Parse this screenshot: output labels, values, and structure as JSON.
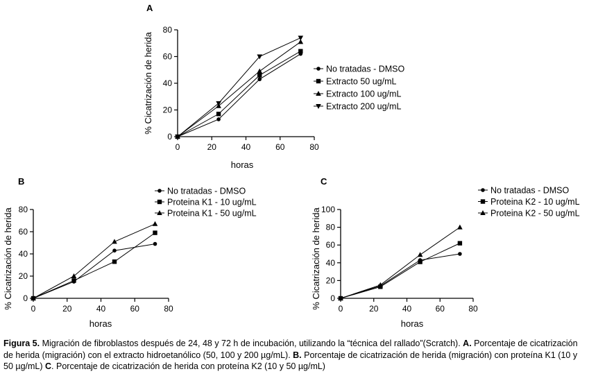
{
  "chart_data": [
    {
      "panel": "A",
      "type": "line",
      "xlabel": "horas",
      "ylabel": "% Cicatrización de herida",
      "xlim": [
        0,
        80
      ],
      "ylim": [
        0,
        80
      ],
      "xticks": [
        0,
        20,
        40,
        60,
        80
      ],
      "yticks": [
        0,
        20,
        40,
        60,
        80
      ],
      "x": [
        0,
        24,
        48,
        72
      ],
      "legend_position": "right",
      "series": [
        {
          "name": "No tratadas - DMSO",
          "marker": "circle",
          "values": [
            0,
            13,
            43,
            62
          ]
        },
        {
          "name": "Extracto 50 ug/mL",
          "marker": "square",
          "values": [
            0,
            17,
            46,
            64
          ]
        },
        {
          "name": "Extracto 100 ug/mL",
          "marker": "triangle-up",
          "values": [
            0,
            23,
            49,
            71
          ]
        },
        {
          "name": "Extracto 200 ug/mL",
          "marker": "triangle-down",
          "values": [
            0,
            25,
            60,
            74
          ]
        }
      ]
    },
    {
      "panel": "B",
      "type": "line",
      "xlabel": "horas",
      "ylabel": "% Cicatrización de herida",
      "xlim": [
        0,
        80
      ],
      "ylim": [
        0,
        80
      ],
      "xticks": [
        0,
        20,
        40,
        60,
        80
      ],
      "yticks": [
        0,
        20,
        40,
        60,
        80
      ],
      "x": [
        0,
        24,
        48,
        72
      ],
      "legend_position": "top-right",
      "series": [
        {
          "name": "No tratadas - DMSO",
          "marker": "circle",
          "values": [
            0,
            15,
            43,
            49
          ]
        },
        {
          "name": "Proteina K1 - 10 ug/mL",
          "marker": "square",
          "values": [
            0,
            16,
            33,
            59
          ]
        },
        {
          "name": "Proteina K1 - 50 ug/mL",
          "marker": "triangle-up",
          "values": [
            0,
            20,
            51,
            67
          ]
        }
      ]
    },
    {
      "panel": "C",
      "type": "line",
      "xlabel": "horas",
      "ylabel": "% Cicatrización de herida",
      "xlim": [
        0,
        80
      ],
      "ylim": [
        0,
        100
      ],
      "xticks": [
        0,
        20,
        40,
        60,
        80
      ],
      "yticks": [
        0,
        20,
        40,
        60,
        80,
        100
      ],
      "x": [
        0,
        24,
        48,
        72
      ],
      "legend_position": "top-right",
      "series": [
        {
          "name": "No tratadas - DMSO",
          "marker": "circle",
          "values": [
            0,
            14,
            43,
            50
          ]
        },
        {
          "name": "Proteina K2 - 10 ug/mL",
          "marker": "square",
          "values": [
            0,
            13,
            41,
            62
          ]
        },
        {
          "name": "Proteina K2 - 50 ug/mL",
          "marker": "triangle-up",
          "values": [
            0,
            15,
            49,
            80
          ]
        }
      ]
    }
  ],
  "caption": {
    "segments": [
      {
        "bold": true,
        "text": "Figura 5."
      },
      {
        "bold": false,
        "text": " Migración de fibroblastos después de 24, 48 y 72 h de incubación, utilizando la “técnica del rallado”(Scratch). "
      },
      {
        "bold": true,
        "text": "A."
      },
      {
        "bold": false,
        "text": " Porcentaje de cicatrización de herida (migración) con el extracto hidroetanólico (50, 100 y 200 µg/mL). "
      },
      {
        "bold": true,
        "text": "B."
      },
      {
        "bold": false,
        "text": " Porcentaje de cicatrización de herida (migración) con proteína K1 (10 y 50 µg/mL) "
      },
      {
        "bold": true,
        "text": "C"
      },
      {
        "bold": false,
        "text": ". Porcentaje de cicatrización de herida con proteína K2 (10 y 50 µg/mL)"
      }
    ]
  }
}
